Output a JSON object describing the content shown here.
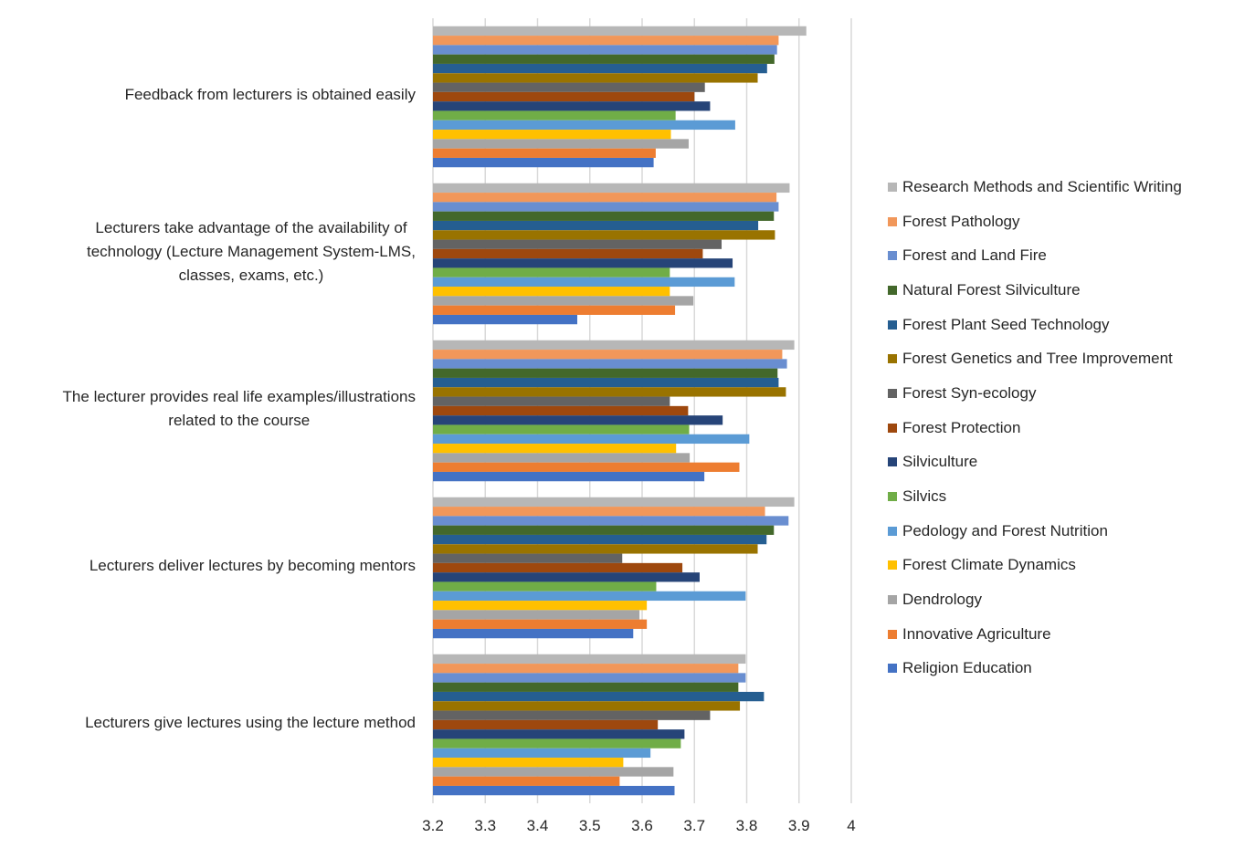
{
  "chart_data": {
    "type": "bar",
    "orientation": "horizontal",
    "title": "",
    "xlabel": "",
    "ylabel": "",
    "xlim": [
      3.2,
      4.0
    ],
    "x_ticks": [
      "3.2",
      "3.3",
      "3.4",
      "3.5",
      "3.6",
      "3.7",
      "3.8",
      "3.9",
      "4"
    ],
    "grid": "vertical",
    "legend_position": "right",
    "categories": [
      "Feedback from lecturers is obtained easily",
      "Lecturers take advantage of the availability of\ntechnology (Lecture Management System-LMS,\nclasses, exams, etc.)",
      "The lecturer provides real life examples/illustrations\nrelated to the course",
      "Lecturers deliver lectures by becoming mentors",
      "Lecturers give lectures using the lecture method"
    ],
    "series": [
      {
        "name": "Religion Education",
        "color": "#4472C4",
        "values": [
          3.622,
          3.476,
          3.719,
          3.583,
          3.662
        ]
      },
      {
        "name": "Innovative Agriculture",
        "color": "#ED7D31",
        "values": [
          3.626,
          3.663,
          3.786,
          3.609,
          3.557
        ]
      },
      {
        "name": "Dendrology",
        "color": "#A5A5A5",
        "values": [
          3.689,
          3.698,
          3.691,
          3.595,
          3.66
        ]
      },
      {
        "name": "Forest Climate Dynamics",
        "color": "#FFC000",
        "values": [
          3.655,
          3.653,
          3.665,
          3.609,
          3.564
        ]
      },
      {
        "name": "Pedology and Forest Nutrition",
        "color": "#5B9BD5",
        "values": [
          3.778,
          3.777,
          3.805,
          3.798,
          3.616
        ]
      },
      {
        "name": "Silvics",
        "color": "#70AD47",
        "values": [
          3.664,
          3.653,
          3.69,
          3.627,
          3.674
        ]
      },
      {
        "name": "Silviculture",
        "color": "#264478",
        "values": [
          3.73,
          3.773,
          3.754,
          3.71,
          3.681
        ]
      },
      {
        "name": "Forest Protection",
        "color": "#9E480E",
        "values": [
          3.7,
          3.716,
          3.688,
          3.677,
          3.63
        ]
      },
      {
        "name": "Forest Syn-ecology",
        "color": "#636363",
        "values": [
          3.72,
          3.752,
          3.653,
          3.562,
          3.73
        ]
      },
      {
        "name": "Forest Genetics and Tree Improvement",
        "color": "#997300",
        "values": [
          3.821,
          3.854,
          3.875,
          3.821,
          3.787
        ]
      },
      {
        "name": "Forest Plant Seed Technology",
        "color": "#255E91",
        "values": [
          3.839,
          3.822,
          3.861,
          3.838,
          3.833
        ]
      },
      {
        "name": "Natural Forest Silviculture",
        "color": "#43682B",
        "values": [
          3.853,
          3.852,
          3.859,
          3.852,
          3.784
        ]
      },
      {
        "name": "Forest and Land Fire",
        "color": "#698ED0",
        "values": [
          3.858,
          3.861,
          3.877,
          3.88,
          3.798
        ]
      },
      {
        "name": "Forest Pathology",
        "color": "#F1975A",
        "values": [
          3.861,
          3.857,
          3.868,
          3.835,
          3.784
        ]
      },
      {
        "name": "Research Methods and Scientific Writing",
        "color": "#B7B7B7",
        "values": [
          3.914,
          3.882,
          3.891,
          3.891,
          3.798
        ]
      }
    ]
  }
}
